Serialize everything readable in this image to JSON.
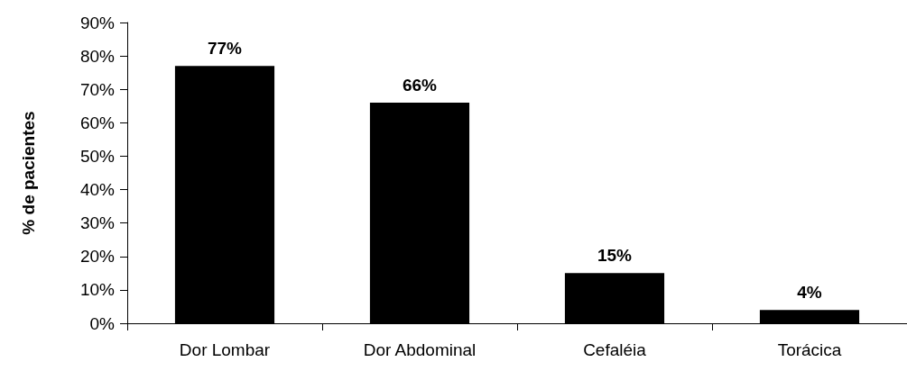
{
  "chart_data": {
    "type": "bar",
    "categories": [
      "Dor Lombar",
      "Dor Abdominal",
      "Cefaléia",
      "Torácica"
    ],
    "values": [
      77,
      66,
      15,
      4
    ],
    "value_labels": [
      "77%",
      "66%",
      "15%",
      "4%"
    ],
    "color": "#000000",
    "ylabel": "% de pacientes",
    "ylim": [
      0,
      90
    ],
    "yticks": [
      {
        "value": 0,
        "label": "0%"
      },
      {
        "value": 10,
        "label": "10%"
      },
      {
        "value": 20,
        "label": "20%"
      },
      {
        "value": 30,
        "label": "30%"
      },
      {
        "value": 40,
        "label": "40%"
      },
      {
        "value": 50,
        "label": "50%"
      },
      {
        "value": 60,
        "label": "60%"
      },
      {
        "value": 70,
        "label": "70%"
      },
      {
        "value": 80,
        "label": "80%"
      },
      {
        "value": 90,
        "label": "90%"
      }
    ],
    "grid": false
  }
}
